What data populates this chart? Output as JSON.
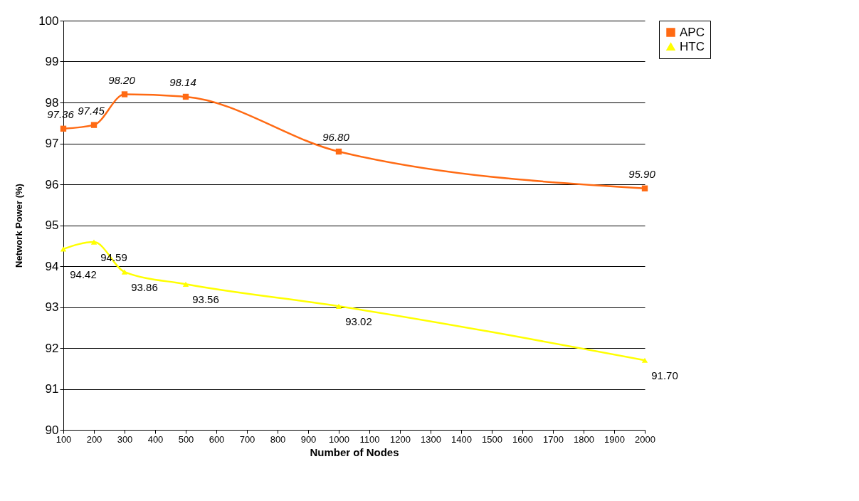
{
  "chart_data": {
    "type": "line",
    "xlabel": "Number of Nodes",
    "ylabel": "Network Power (%)",
    "x": [
      100,
      200,
      300,
      500,
      1000,
      2000
    ],
    "series": [
      {
        "name": "APC",
        "color": "#ff6a13",
        "marker": "square",
        "values": [
          97.36,
          97.45,
          98.2,
          98.14,
          96.8,
          95.9
        ],
        "value_labels": [
          "97.36",
          "97.45",
          "98.20",
          "98.14",
          "96.80",
          "95.90"
        ]
      },
      {
        "name": "HTC",
        "color": "#ffff00",
        "marker": "triangle",
        "values": [
          94.42,
          94.59,
          93.86,
          93.56,
          93.02,
          91.7
        ],
        "value_labels": [
          "94.42",
          "94.59",
          "93.86",
          "93.56",
          "93.02",
          "91.70"
        ]
      }
    ],
    "xlim": [
      100,
      2000
    ],
    "xticks": [
      100,
      200,
      300,
      400,
      500,
      600,
      700,
      800,
      900,
      1000,
      1100,
      1200,
      1300,
      1400,
      1500,
      1600,
      1700,
      1800,
      1900,
      2000
    ],
    "ylim": [
      90,
      100
    ],
    "yticks": [
      90,
      91,
      92,
      93,
      94,
      95,
      96,
      97,
      98,
      99,
      100
    ],
    "grid": "y",
    "legend": "right",
    "line_style": "solid"
  }
}
